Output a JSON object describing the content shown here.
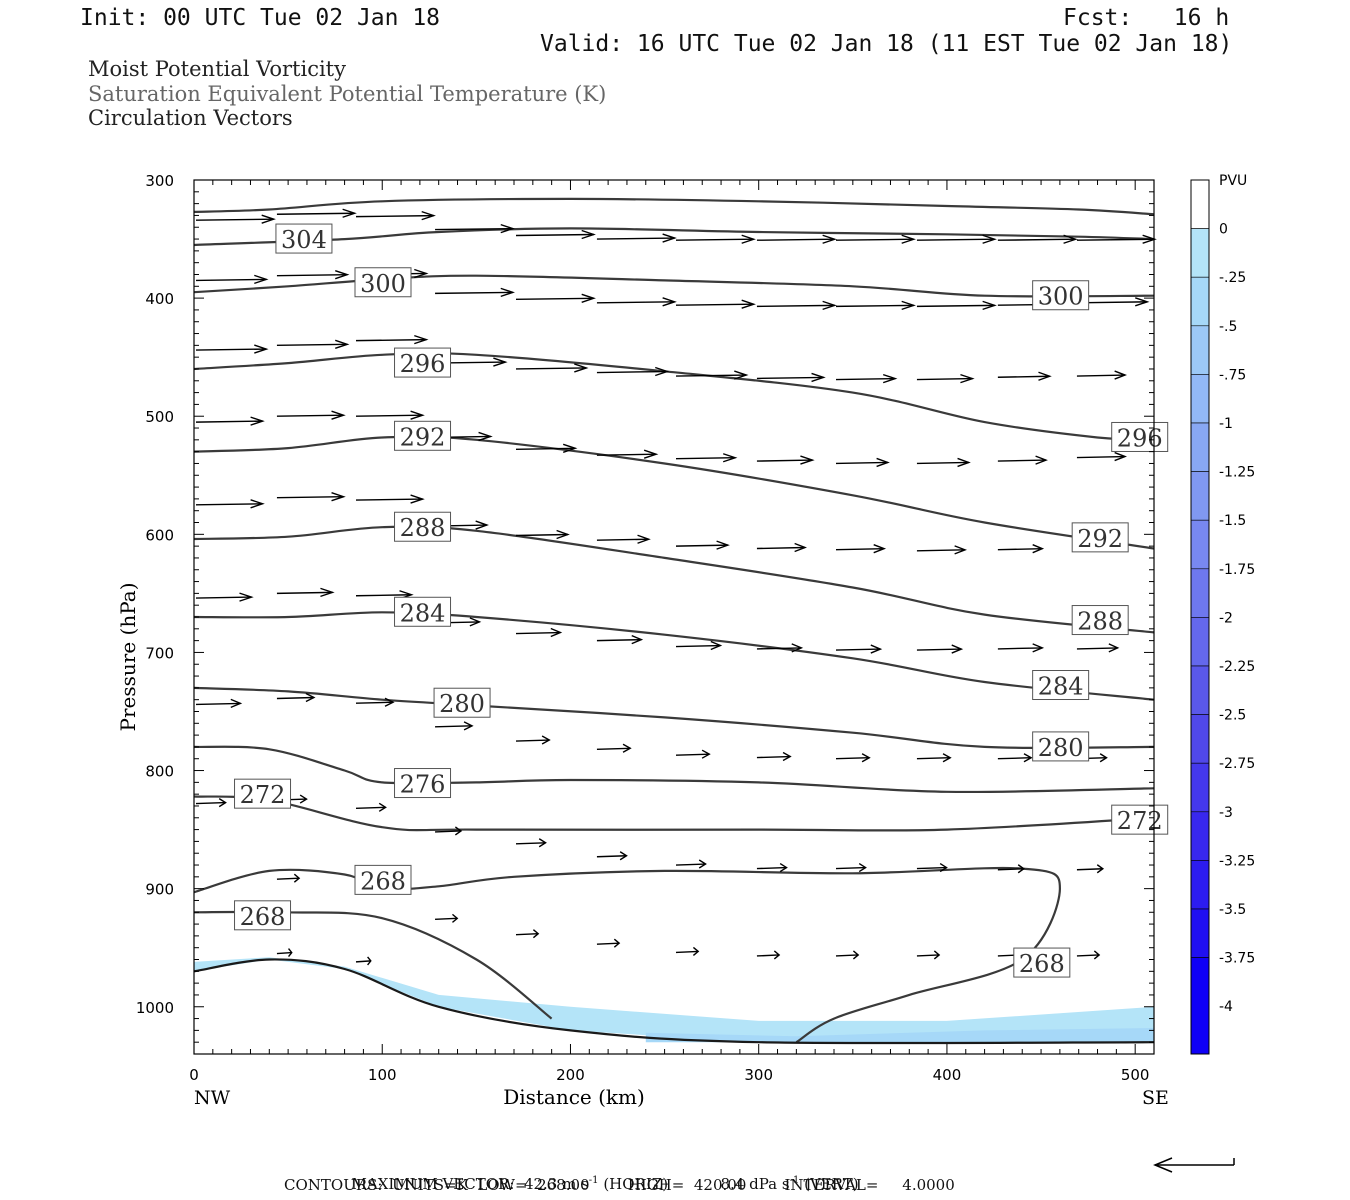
{
  "header": {
    "init": "Init: 00 UTC Tue 02 Jan 18",
    "fcst": "Fcst:   16 h",
    "valid": "Valid: 16 UTC Tue 02 Jan 18 (11 EST Tue 02 Jan 18)"
  },
  "titles": {
    "line1": "Moist Potential Vorticity",
    "line2": "Saturation Equivalent Potential Temperature (K)",
    "line3": "Circulation Vectors"
  },
  "footer": {
    "max_vector_label": "MAXIMUM VECTOR:",
    "max_vector_horiz": "42.3 m s",
    "horiz_tag": "(HORIZ)",
    "max_vector_vert": "8.4 dPa s",
    "vert_tag": "(VERT)",
    "exponent": "-1",
    "contours": "CONTOURS:  UNITS=K  LOW=  268.00        HIGH=  420.00        INTERVAL=     4.0000"
  },
  "chart_data": {
    "type": "contour",
    "xlabel": "Distance (km)",
    "ylabel": "Pressure (hPa)",
    "xlim": [
      0,
      510
    ],
    "ylim": [
      300,
      1040
    ],
    "x_ticks": [
      0,
      100,
      200,
      300,
      400,
      500
    ],
    "y_ticks": [
      300,
      400,
      500,
      600,
      700,
      800,
      900,
      1000
    ],
    "x_endpoints": {
      "left": "NW",
      "right": "SE"
    },
    "colorbar": {
      "unit": "PVU",
      "levels": [
        "0",
        "-.25",
        "-.5",
        "-.75",
        "-1",
        "-1.25",
        "-1.5",
        "-1.75",
        "-2",
        "-2.25",
        "-2.5",
        "-2.75",
        "-3",
        "-3.25",
        "-3.5",
        "-3.75",
        "-4"
      ],
      "colors": [
        "#ffffff",
        "#b4e4f8",
        "#a6d8f8",
        "#9cc8f6",
        "#92b8f6",
        "#88a8f4",
        "#8098f2",
        "#7888f0",
        "#6e78ee",
        "#6468ec",
        "#5a58ea",
        "#5048ea",
        "#4438ec",
        "#3828ee",
        "#2c1cf0",
        "#2010f2",
        "#1000f6"
      ]
    },
    "theta_contours": [
      {
        "label": "304",
        "points": [
          [
            0,
            327
          ],
          [
            40,
            325
          ],
          [
            100,
            318
          ],
          [
            200,
            316
          ],
          [
            300,
            318
          ],
          [
            400,
            322
          ],
          [
            470,
            325
          ],
          [
            510,
            329
          ]
        ]
      },
      {
        "label": "304",
        "label_pos": [
          43,
          350
        ],
        "points": [
          [
            0,
            355
          ],
          [
            80,
            350
          ],
          [
            130,
            344
          ],
          [
            200,
            341
          ],
          [
            300,
            344
          ],
          [
            400,
            346
          ],
          [
            470,
            348
          ],
          [
            510,
            350
          ]
        ]
      },
      {
        "label": "300",
        "label_pos": [
          85,
          387
        ],
        "points": [
          [
            0,
            395
          ],
          [
            50,
            390
          ],
          [
            100,
            384
          ],
          [
            150,
            381
          ],
          [
            250,
            385
          ],
          [
            350,
            390
          ],
          [
            420,
            398
          ],
          [
            510,
            398
          ]
        ]
      },
      {
        "label": "300",
        "label_pos": [
          445,
          398
        ],
        "points": []
      },
      {
        "label": "296",
        "label_pos": [
          106,
          455
        ],
        "points": [
          [
            0,
            460
          ],
          [
            50,
            455
          ],
          [
            100,
            448
          ],
          [
            150,
            448
          ],
          [
            250,
            462
          ],
          [
            350,
            480
          ],
          [
            420,
            505
          ],
          [
            480,
            518
          ],
          [
            510,
            520
          ]
        ]
      },
      {
        "label": "296",
        "label_pos": [
          487,
          518
        ],
        "points": []
      },
      {
        "label": "292",
        "label_pos": [
          106,
          517
        ],
        "points": [
          [
            0,
            530
          ],
          [
            50,
            527
          ],
          [
            100,
            518
          ],
          [
            150,
            520
          ],
          [
            250,
            540
          ],
          [
            350,
            567
          ],
          [
            420,
            590
          ],
          [
            510,
            612
          ]
        ]
      },
      {
        "label": "292",
        "label_pos": [
          466,
          603
        ],
        "points": []
      },
      {
        "label": "288",
        "label_pos": [
          106,
          594
        ],
        "points": [
          [
            0,
            604
          ],
          [
            50,
            602
          ],
          [
            100,
            594
          ],
          [
            150,
            597
          ],
          [
            250,
            620
          ],
          [
            350,
            645
          ],
          [
            420,
            668
          ],
          [
            510,
            683
          ]
        ]
      },
      {
        "label": "288",
        "label_pos": [
          466,
          673
        ],
        "points": []
      },
      {
        "label": "284",
        "label_pos": [
          106,
          666
        ],
        "points": [
          [
            0,
            670
          ],
          [
            50,
            670
          ],
          [
            100,
            666
          ],
          [
            150,
            670
          ],
          [
            250,
            685
          ],
          [
            350,
            705
          ],
          [
            420,
            725
          ],
          [
            510,
            740
          ]
        ]
      },
      {
        "label": "284",
        "label_pos": [
          445,
          728
        ],
        "points": []
      },
      {
        "label": "280",
        "label_pos": [
          127,
          743
        ],
        "points": [
          [
            0,
            730
          ],
          [
            50,
            733
          ],
          [
            100,
            740
          ],
          [
            150,
            745
          ],
          [
            250,
            755
          ],
          [
            350,
            768
          ],
          [
            420,
            780
          ],
          [
            510,
            780
          ]
        ]
      },
      {
        "label": "280",
        "label_pos": [
          445,
          780
        ],
        "points": []
      },
      {
        "label": "276",
        "label_pos": [
          106,
          811
        ],
        "points": [
          [
            0,
            780
          ],
          [
            40,
            782
          ],
          [
            80,
            800
          ],
          [
            100,
            810
          ],
          [
            150,
            810
          ],
          [
            200,
            808
          ],
          [
            300,
            810
          ],
          [
            400,
            818
          ],
          [
            510,
            815
          ]
        ]
      },
      {
        "label": "272",
        "label_pos": [
          21,
          820
        ],
        "points": [
          [
            0,
            822
          ],
          [
            40,
            825
          ],
          [
            100,
            848
          ],
          [
            150,
            850
          ],
          [
            300,
            850
          ],
          [
            400,
            850
          ],
          [
            510,
            840
          ]
        ]
      },
      {
        "label": "272",
        "label_pos": [
          487,
          842
        ],
        "points": []
      },
      {
        "label": "268",
        "label_pos": [
          85,
          893
        ],
        "points": [
          [
            0,
            903
          ],
          [
            40,
            885
          ],
          [
            80,
            888
          ],
          [
            100,
            900
          ],
          [
            130,
            898
          ],
          [
            170,
            890
          ],
          [
            250,
            885
          ],
          [
            350,
            887
          ],
          [
            440,
            883
          ],
          [
            460,
            900
          ],
          [
            440,
            960
          ],
          [
            380,
            990
          ],
          [
            340,
            1010
          ],
          [
            320,
            1030
          ]
        ]
      },
      {
        "label": "268",
        "label_pos": [
          21,
          923
        ],
        "points": [
          [
            0,
            920
          ],
          [
            50,
            920
          ],
          [
            100,
            925
          ],
          [
            150,
            960
          ],
          [
            190,
            1010
          ]
        ]
      },
      {
        "label": "268",
        "label_pos": [
          435,
          963
        ],
        "points": []
      }
    ],
    "surface_line": [
      [
        0,
        970
      ],
      [
        40,
        960
      ],
      [
        80,
        968
      ],
      [
        130,
        1000
      ],
      [
        200,
        1020
      ],
      [
        300,
        1030
      ],
      [
        510,
        1030
      ]
    ],
    "mpv_shading": [
      {
        "level": "-.25",
        "points": [
          [
            0,
            962
          ],
          [
            40,
            958
          ],
          [
            80,
            966
          ],
          [
            130,
            990
          ],
          [
            200,
            1000
          ],
          [
            300,
            1012
          ],
          [
            400,
            1012
          ],
          [
            510,
            1000
          ],
          [
            510,
            1030
          ],
          [
            300,
            1030
          ],
          [
            200,
            1020
          ],
          [
            130,
            1000
          ],
          [
            80,
            968
          ],
          [
            40,
            960
          ],
          [
            0,
            970
          ]
        ]
      },
      {
        "level": "-.5",
        "points": [
          [
            240,
            1022
          ],
          [
            320,
            1025
          ],
          [
            420,
            1020
          ],
          [
            510,
            1018
          ],
          [
            510,
            1030
          ],
          [
            240,
            1030
          ]
        ]
      }
    ],
    "vectors": [
      {
        "x": 0,
        "p": 334,
        "len": 42
      },
      {
        "x": 43,
        "p": 329,
        "len": 42
      },
      {
        "x": 85,
        "p": 331,
        "len": 42
      },
      {
        "x": 127,
        "p": 342,
        "len": 42
      },
      {
        "x": 170,
        "p": 347,
        "len": 42
      },
      {
        "x": 213,
        "p": 350,
        "len": 42
      },
      {
        "x": 255,
        "p": 351,
        "len": 42
      },
      {
        "x": 298,
        "p": 351,
        "len": 42
      },
      {
        "x": 340,
        "p": 351,
        "len": 42
      },
      {
        "x": 383,
        "p": 351,
        "len": 42
      },
      {
        "x": 426,
        "p": 351,
        "len": 42
      },
      {
        "x": 468,
        "p": 351,
        "len": 42
      },
      {
        "x": 0,
        "p": 385,
        "len": 38
      },
      {
        "x": 43,
        "p": 381,
        "len": 38
      },
      {
        "x": 85,
        "p": 380,
        "len": 38
      },
      {
        "x": 127,
        "p": 396,
        "len": 42
      },
      {
        "x": 170,
        "p": 401,
        "len": 42
      },
      {
        "x": 213,
        "p": 404,
        "len": 42
      },
      {
        "x": 255,
        "p": 406,
        "len": 42
      },
      {
        "x": 298,
        "p": 407,
        "len": 42
      },
      {
        "x": 340,
        "p": 407,
        "len": 42
      },
      {
        "x": 383,
        "p": 407,
        "len": 42
      },
      {
        "x": 426,
        "p": 406,
        "len": 42
      },
      {
        "x": 468,
        "p": 404,
        "len": 38
      },
      {
        "x": 0,
        "p": 444,
        "len": 38
      },
      {
        "x": 43,
        "p": 440,
        "len": 38
      },
      {
        "x": 85,
        "p": 436,
        "len": 38
      },
      {
        "x": 127,
        "p": 455,
        "len": 38
      },
      {
        "x": 170,
        "p": 460,
        "len": 38
      },
      {
        "x": 213,
        "p": 463,
        "len": 38
      },
      {
        "x": 255,
        "p": 466,
        "len": 38
      },
      {
        "x": 298,
        "p": 468,
        "len": 36
      },
      {
        "x": 340,
        "p": 469,
        "len": 32
      },
      {
        "x": 383,
        "p": 469,
        "len": 30
      },
      {
        "x": 426,
        "p": 467,
        "len": 28
      },
      {
        "x": 468,
        "p": 466,
        "len": 26
      },
      {
        "x": 0,
        "p": 505,
        "len": 36
      },
      {
        "x": 43,
        "p": 500,
        "len": 36
      },
      {
        "x": 85,
        "p": 500,
        "len": 36
      },
      {
        "x": 127,
        "p": 518,
        "len": 30
      },
      {
        "x": 170,
        "p": 528,
        "len": 32
      },
      {
        "x": 213,
        "p": 533,
        "len": 32
      },
      {
        "x": 255,
        "p": 536,
        "len": 32
      },
      {
        "x": 298,
        "p": 538,
        "len": 30
      },
      {
        "x": 340,
        "p": 540,
        "len": 28
      },
      {
        "x": 383,
        "p": 540,
        "len": 28
      },
      {
        "x": 426,
        "p": 538,
        "len": 26
      },
      {
        "x": 468,
        "p": 535,
        "len": 26
      },
      {
        "x": 0,
        "p": 575,
        "len": 36
      },
      {
        "x": 43,
        "p": 569,
        "len": 36
      },
      {
        "x": 85,
        "p": 571,
        "len": 36
      },
      {
        "x": 127,
        "p": 593,
        "len": 28
      },
      {
        "x": 170,
        "p": 601,
        "len": 28
      },
      {
        "x": 213,
        "p": 605,
        "len": 28
      },
      {
        "x": 255,
        "p": 610,
        "len": 28
      },
      {
        "x": 298,
        "p": 612,
        "len": 26
      },
      {
        "x": 340,
        "p": 613,
        "len": 26
      },
      {
        "x": 383,
        "p": 614,
        "len": 26
      },
      {
        "x": 426,
        "p": 613,
        "len": 24
      },
      {
        "x": 468,
        "p": 611,
        "len": 22
      },
      {
        "x": 0,
        "p": 654,
        "len": 30
      },
      {
        "x": 43,
        "p": 650,
        "len": 30
      },
      {
        "x": 85,
        "p": 652,
        "len": 30
      },
      {
        "x": 127,
        "p": 675,
        "len": 24
      },
      {
        "x": 170,
        "p": 684,
        "len": 24
      },
      {
        "x": 213,
        "p": 690,
        "len": 24
      },
      {
        "x": 255,
        "p": 695,
        "len": 24
      },
      {
        "x": 298,
        "p": 697,
        "len": 24
      },
      {
        "x": 340,
        "p": 698,
        "len": 24
      },
      {
        "x": 383,
        "p": 698,
        "len": 24
      },
      {
        "x": 426,
        "p": 697,
        "len": 24
      },
      {
        "x": 468,
        "p": 697,
        "len": 22
      },
      {
        "x": 0,
        "p": 744,
        "len": 24
      },
      {
        "x": 43,
        "p": 739,
        "len": 20
      },
      {
        "x": 85,
        "p": 743,
        "len": 20
      },
      {
        "x": 127,
        "p": 763,
        "len": 20
      },
      {
        "x": 170,
        "p": 775,
        "len": 18
      },
      {
        "x": 213,
        "p": 782,
        "len": 18
      },
      {
        "x": 255,
        "p": 787,
        "len": 18
      },
      {
        "x": 298,
        "p": 789,
        "len": 18
      },
      {
        "x": 340,
        "p": 790,
        "len": 18
      },
      {
        "x": 383,
        "p": 790,
        "len": 18
      },
      {
        "x": 426,
        "p": 790,
        "len": 18
      },
      {
        "x": 468,
        "p": 790,
        "len": 16
      },
      {
        "x": 0,
        "p": 828,
        "len": 16
      },
      {
        "x": 43,
        "p": 825,
        "len": 16
      },
      {
        "x": 85,
        "p": 832,
        "len": 16
      },
      {
        "x": 127,
        "p": 852,
        "len": 14
      },
      {
        "x": 170,
        "p": 862,
        "len": 16
      },
      {
        "x": 213,
        "p": 873,
        "len": 16
      },
      {
        "x": 255,
        "p": 880,
        "len": 16
      },
      {
        "x": 298,
        "p": 883,
        "len": 16
      },
      {
        "x": 340,
        "p": 883,
        "len": 16
      },
      {
        "x": 383,
        "p": 883,
        "len": 16
      },
      {
        "x": 426,
        "p": 884,
        "len": 14
      },
      {
        "x": 468,
        "p": 884,
        "len": 14
      },
      {
        "x": 43,
        "p": 892,
        "len": 12
      },
      {
        "x": 85,
        "p": 902,
        "len": 10
      },
      {
        "x": 127,
        "p": 926,
        "len": 12
      },
      {
        "x": 170,
        "p": 939,
        "len": 12
      },
      {
        "x": 213,
        "p": 947,
        "len": 12
      },
      {
        "x": 255,
        "p": 954,
        "len": 12
      },
      {
        "x": 298,
        "p": 957,
        "len": 12
      },
      {
        "x": 340,
        "p": 957,
        "len": 12
      },
      {
        "x": 383,
        "p": 957,
        "len": 12
      },
      {
        "x": 426,
        "p": 957,
        "len": 12
      },
      {
        "x": 468,
        "p": 957,
        "len": 12
      },
      {
        "x": 43,
        "p": 955,
        "len": 8
      },
      {
        "x": 85,
        "p": 962,
        "len": 8
      }
    ]
  }
}
